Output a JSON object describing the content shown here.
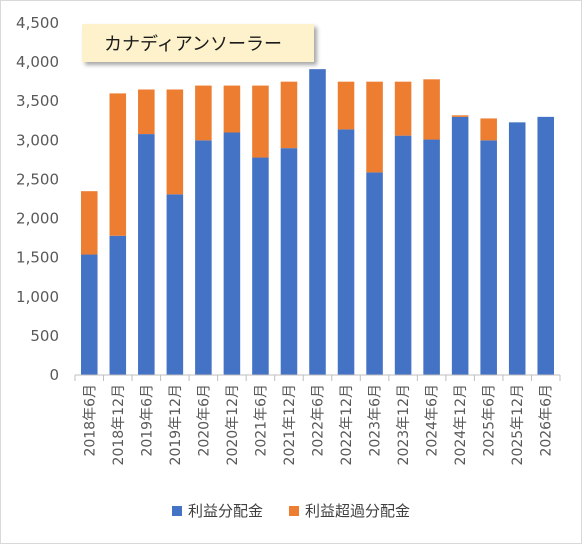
{
  "chart_data": {
    "type": "bar",
    "stacked": true,
    "title": "カナディアンソーラー",
    "categories": [
      "2018年6月",
      "2018年12月",
      "2019年6月",
      "2019年12月",
      "2020年6月",
      "2020年12月",
      "2021年6月",
      "2021年12月",
      "2022年6月",
      "2022年12月",
      "2023年6月",
      "2023年12月",
      "2024年6月",
      "2024年12月",
      "2025年6月",
      "2025年12月",
      "2026年6月"
    ],
    "series": [
      {
        "name": "利益分配金",
        "color": "#4472c4",
        "values": [
          1540,
          1780,
          3080,
          2310,
          3000,
          3100,
          2780,
          2900,
          3910,
          3140,
          2590,
          3060,
          3010,
          3300,
          3000,
          3230,
          3300
        ]
      },
      {
        "name": "利益超過分配金",
        "color": "#ed7d31",
        "values": [
          810,
          1820,
          570,
          1340,
          700,
          600,
          920,
          850,
          0,
          610,
          1160,
          690,
          770,
          20,
          280,
          0,
          0
        ]
      }
    ],
    "ylim": [
      0,
      4500
    ],
    "yticks": [
      "0",
      "500",
      "1,000",
      "1,500",
      "2,000",
      "2,500",
      "3,000",
      "3,500",
      "4,000",
      "4,500"
    ],
    "grid": false,
    "legend_position": "bottom"
  }
}
